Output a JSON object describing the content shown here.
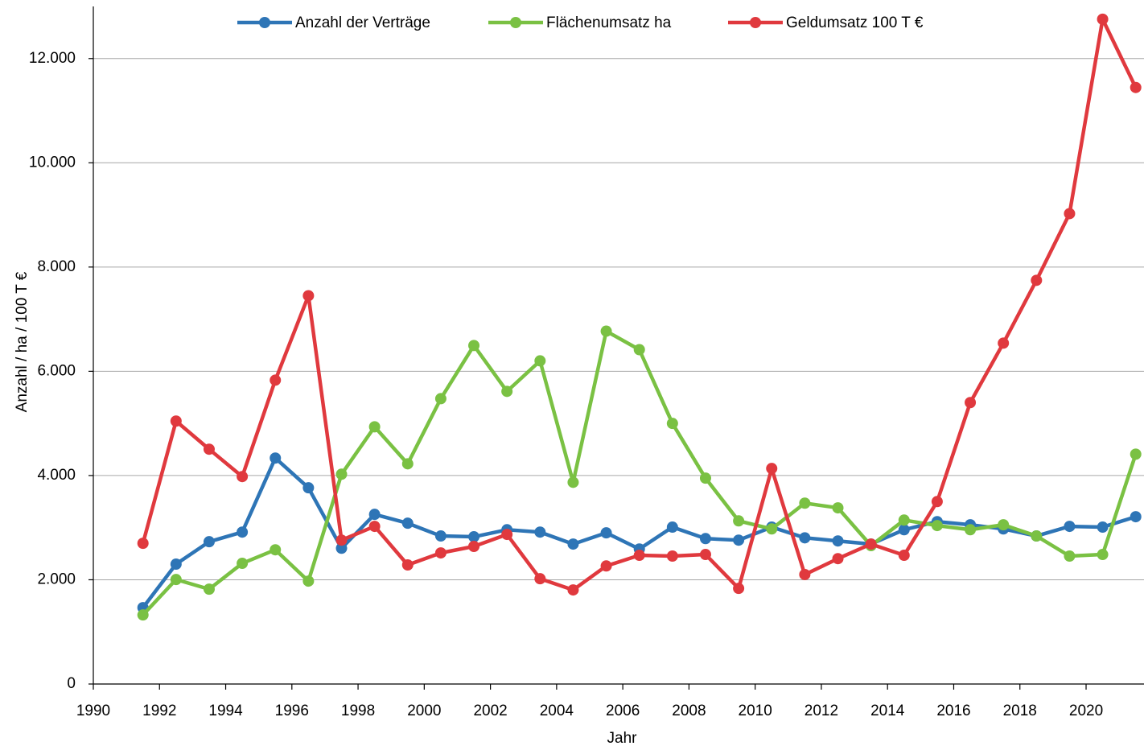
{
  "chart_data": {
    "type": "line",
    "xlabel": "Jahr",
    "ylabel": "Anzahl / ha / 100 T €",
    "x": [
      1991.5,
      1992.5,
      1993.5,
      1994.5,
      1995.5,
      1996.5,
      1997.5,
      1998.5,
      1999.5,
      2000.5,
      2001.5,
      2002.5,
      2003.5,
      2004.5,
      2005.5,
      2006.5,
      2007.5,
      2008.5,
      2009.5,
      2010.5,
      2011.5,
      2012.5,
      2013.5,
      2014.5,
      2015.5,
      2016.5,
      2017.5,
      2018.5,
      2019.5,
      2020.5,
      2021.5
    ],
    "series": [
      {
        "name": "Anzahl der Verträge",
        "color": "#2e75b6",
        "values": [
          1465,
          2300,
          2730,
          2915,
          4335,
          3765,
          2605,
          3255,
          3085,
          2840,
          2825,
          2960,
          2915,
          2685,
          2900,
          2590,
          3010,
          2790,
          2760,
          3010,
          2805,
          2745,
          2685,
          2960,
          3115,
          3055,
          2975,
          2840,
          3025,
          3010,
          3210
        ]
      },
      {
        "name": "Flächenumsatz ha",
        "color": "#7ac143",
        "values": [
          1325,
          2005,
          1820,
          2315,
          2575,
          1975,
          4025,
          4935,
          4225,
          5475,
          6495,
          5615,
          6200,
          3870,
          6770,
          6415,
          5000,
          3950,
          3130,
          2975,
          3470,
          3380,
          2655,
          3145,
          3040,
          2960,
          3055,
          2840,
          2455,
          2485,
          4410
        ]
      },
      {
        "name": "Geldumsatz 100 T €",
        "color": "#e0393e",
        "values": [
          2700,
          5045,
          4505,
          3980,
          5830,
          7450,
          2760,
          3025,
          2285,
          2515,
          2640,
          2870,
          2020,
          1805,
          2265,
          2470,
          2455,
          2485,
          1835,
          4135,
          2100,
          2405,
          2685,
          2470,
          3500,
          5400,
          6540,
          7745,
          9025,
          12755,
          11445
        ]
      }
    ],
    "xlim": [
      1990,
      2021.75
    ],
    "xticks": [
      1990,
      1992,
      1994,
      1996,
      1998,
      2000,
      2002,
      2004,
      2006,
      2008,
      2010,
      2012,
      2014,
      2016,
      2018,
      2020
    ],
    "ylim": [
      0,
      13000
    ],
    "yticks": [
      0,
      {
        "value": 2000,
        "label": "2.000"
      },
      {
        "value": 4000,
        "label": "4.000"
      },
      {
        "value": 6000,
        "label": "6.000"
      },
      {
        "value": 8000,
        "label": "8.000"
      },
      {
        "value": 10000,
        "label": "10.000"
      },
      {
        "value": 12000,
        "label": "12.000"
      }
    ],
    "grid": true,
    "legend": "top"
  }
}
